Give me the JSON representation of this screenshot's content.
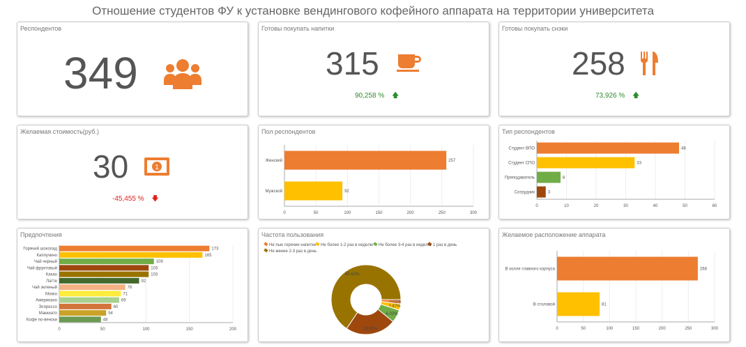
{
  "title": "Отношение студентов ФУ к установке вендингового кофейного аппарата на территории университета",
  "kpis": {
    "respondents": {
      "label": "Респондентов",
      "value": "349"
    },
    "drinks": {
      "label": "Готовы покупать напитки",
      "value": "315",
      "delta": "90,258 %"
    },
    "snacks": {
      "label": "Готовы покупать снэки",
      "value": "258",
      "delta": "73,926 %"
    },
    "price": {
      "label": "Желаемая стоимость(руб.)",
      "value": "30",
      "delta": "-45,455 %"
    }
  },
  "colors": {
    "orange": "#ed7d31",
    "yellow": "#ffc000",
    "green": "#70ad47",
    "brown": "#9e480e",
    "olive": "#997300",
    "up": "#2e8b2e",
    "down": "#e02020"
  },
  "chart_data": [
    {
      "id": "gender",
      "type": "bar",
      "title": "Пол респондентов",
      "categories": [
        "Женский",
        "Мужской"
      ],
      "values": [
        257,
        92
      ],
      "colors": [
        "#ed7d31",
        "#ffc000"
      ],
      "xlim": [
        0,
        300
      ],
      "ticks": [
        "0",
        "50",
        "100",
        "150",
        "200",
        "250",
        "300"
      ]
    },
    {
      "id": "type",
      "type": "bar",
      "title": "Тип респондентов",
      "categories": [
        "Студент ВПО",
        "Студент СПО",
        "Преподаватель",
        "Сотрудник"
      ],
      "values": [
        48,
        33,
        8,
        3
      ],
      "colors": [
        "#ed7d31",
        "#ffc000",
        "#70ad47",
        "#9e480e"
      ],
      "xlim": [
        0,
        60
      ],
      "ticks": [
        "0",
        "10",
        "20",
        "30",
        "40",
        "50",
        "60"
      ]
    },
    {
      "id": "prefs",
      "type": "bar",
      "title": "Предпочтения",
      "categories": [
        "Горячий шоколад",
        "Каппучино",
        "Чай черный",
        "Чай фруктовый",
        "Какао",
        "Латте",
        "Чай зеленый",
        "Мокко",
        "Американо",
        "Эспрессо",
        "Маккиато",
        "Кофе по-венски"
      ],
      "values": [
        173,
        165,
        109,
        103,
        103,
        92,
        76,
        71,
        69,
        60,
        54,
        48
      ],
      "colors": [
        "#ed7d31",
        "#ffc000",
        "#70ad47",
        "#9e480e",
        "#997300",
        "#43682b",
        "#f4b183",
        "#ffeb3b",
        "#a9d18e",
        "#d2743b",
        "#c9a227",
        "#6b9a52"
      ],
      "xlim": [
        0,
        200
      ],
      "ticks": [
        "0",
        "50",
        "100",
        "150",
        "200"
      ]
    },
    {
      "id": "freq",
      "type": "pie",
      "title": "Частота пользования",
      "categories": [
        "Не пью горячие напитки",
        "Не более 1-2 раз в неделю",
        "Не более 3-4 раз в неделю",
        "1 раз в день",
        "Не менее 2-3 раз в день"
      ],
      "values": [
        2.01,
        2.87,
        6.02,
        23.5,
        65.62
      ],
      "labels": [
        "2.01%",
        "2.87%",
        "6.02%",
        "23.50%",
        "65.62%"
      ],
      "colors": [
        "#ed7d31",
        "#ffc000",
        "#70ad47",
        "#9e480e",
        "#997300"
      ]
    },
    {
      "id": "location",
      "type": "bar",
      "title": "Желаемое расположение аппарата",
      "categories": [
        "В холле главного корпуса",
        "В столовой"
      ],
      "values": [
        268,
        81
      ],
      "colors": [
        "#ed7d31",
        "#ffc000"
      ],
      "xlim": [
        0,
        300
      ],
      "ticks": [
        "0",
        "50",
        "100",
        "150",
        "200",
        "250",
        "300"
      ]
    }
  ]
}
